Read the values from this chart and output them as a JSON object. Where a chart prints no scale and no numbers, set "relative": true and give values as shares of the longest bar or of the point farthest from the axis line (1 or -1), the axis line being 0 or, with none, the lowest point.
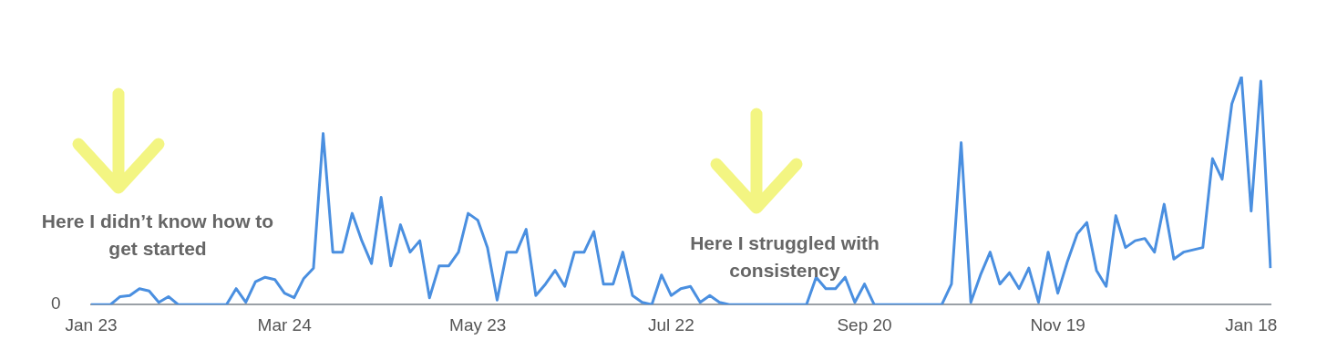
{
  "chart_data": {
    "type": "line",
    "relative": true,
    "marker": "none",
    "categories": [
      "Jan 23",
      null,
      null,
      null,
      null,
      null,
      null,
      null,
      null,
      null,
      null,
      null,
      null,
      null,
      null,
      null,
      null,
      null,
      null,
      null,
      "Mar 24",
      null,
      null,
      null,
      null,
      null,
      null,
      null,
      null,
      null,
      null,
      null,
      null,
      null,
      null,
      null,
      null,
      null,
      null,
      null,
      "May 23",
      null,
      null,
      null,
      null,
      null,
      null,
      null,
      null,
      null,
      null,
      null,
      null,
      null,
      null,
      null,
      null,
      null,
      null,
      null,
      "Jul 22",
      null,
      null,
      null,
      null,
      null,
      null,
      null,
      null,
      null,
      null,
      null,
      null,
      null,
      null,
      null,
      null,
      null,
      null,
      null,
      "Sep 20",
      null,
      null,
      null,
      null,
      null,
      null,
      null,
      null,
      null,
      null,
      null,
      null,
      null,
      null,
      null,
      null,
      null,
      null,
      null,
      "Nov 19",
      null,
      null,
      null,
      null,
      null,
      null,
      null,
      null,
      null,
      null,
      null,
      null,
      null,
      null,
      null,
      null,
      null,
      null,
      null,
      "Jan 18",
      null,
      null
    ],
    "series": [
      {
        "color": "#4a8fe0",
        "values": [
          0,
          0,
          0,
          0.035,
          0.04,
          0.07,
          0.06,
          0.01,
          0.035,
          0,
          0,
          0,
          0,
          0,
          0,
          0.07,
          0.01,
          0.1,
          0.12,
          0.11,
          0.05,
          0.03,
          0.115,
          0.16,
          0.75,
          0.23,
          0.23,
          0.4,
          0.28,
          0.18,
          0.47,
          0.17,
          0.35,
          0.23,
          0.28,
          0.03,
          0.17,
          0.17,
          0.23,
          0.4,
          0.37,
          0.25,
          0.02,
          0.23,
          0.23,
          0.33,
          0.04,
          0.09,
          0.15,
          0.08,
          0.23,
          0.23,
          0.32,
          0.09,
          0.09,
          0.23,
          0.04,
          0.01,
          0,
          0.13,
          0.04,
          0.07,
          0.08,
          0.01,
          0.04,
          0.01,
          0,
          0,
          0,
          0,
          0,
          0,
          0,
          0,
          0,
          0.12,
          0.07,
          0.07,
          0.12,
          0.01,
          0.09,
          0,
          0,
          0,
          0,
          0,
          0,
          0,
          0,
          0.09,
          0.71,
          0.01,
          0.13,
          0.23,
          0.09,
          0.14,
          0.07,
          0.16,
          0.01,
          0.23,
          0.05,
          0.19,
          0.31,
          0.36,
          0.15,
          0.08,
          0.39,
          0.25,
          0.28,
          0.29,
          0.23,
          0.44,
          0.2,
          0.23,
          0.24,
          0.25,
          0.64,
          0.55,
          0.88,
          1,
          0.41,
          0.98,
          0.16
        ]
      }
    ],
    "annotations": [
      "0",
      "Here I didn’t know how to get started",
      "Here I struggled with consistency"
    ]
  }
}
